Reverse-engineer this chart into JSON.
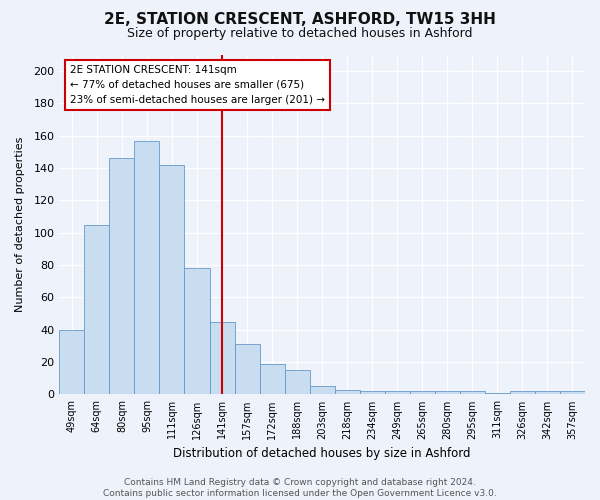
{
  "title": "2E, STATION CRESCENT, ASHFORD, TW15 3HH",
  "subtitle": "Size of property relative to detached houses in Ashford",
  "xlabel": "Distribution of detached houses by size in Ashford",
  "ylabel": "Number of detached properties",
  "categories": [
    "49sqm",
    "64sqm",
    "80sqm",
    "95sqm",
    "111sqm",
    "126sqm",
    "141sqm",
    "157sqm",
    "172sqm",
    "188sqm",
    "203sqm",
    "218sqm",
    "234sqm",
    "249sqm",
    "265sqm",
    "280sqm",
    "295sqm",
    "311sqm",
    "326sqm",
    "342sqm",
    "357sqm"
  ],
  "bar_heights": [
    40,
    105,
    146,
    157,
    142,
    78,
    45,
    31,
    19,
    15,
    5,
    3,
    2,
    2,
    2,
    2,
    2,
    1,
    2,
    2,
    2
  ],
  "highlight_index": 6,
  "annotation_line1": "2E STATION CRESCENT: 141sqm",
  "annotation_line2": "← 77% of detached houses are smaller (675)",
  "annotation_line3": "23% of semi-detached houses are larger (201) →",
  "bar_color": "#c9ddf0",
  "bar_edge_color": "#6699cc",
  "highlight_line_color": "#cc0000",
  "annotation_box_color": "#ffffff",
  "annotation_box_edge": "#cc0000",
  "background_color": "#eef2fb",
  "grid_color": "#ffffff",
  "footer_text": "Contains HM Land Registry data © Crown copyright and database right 2024.\nContains public sector information licensed under the Open Government Licence v3.0.",
  "ylim": [
    0,
    210
  ],
  "yticks": [
    0,
    20,
    40,
    60,
    80,
    100,
    120,
    140,
    160,
    180,
    200
  ]
}
